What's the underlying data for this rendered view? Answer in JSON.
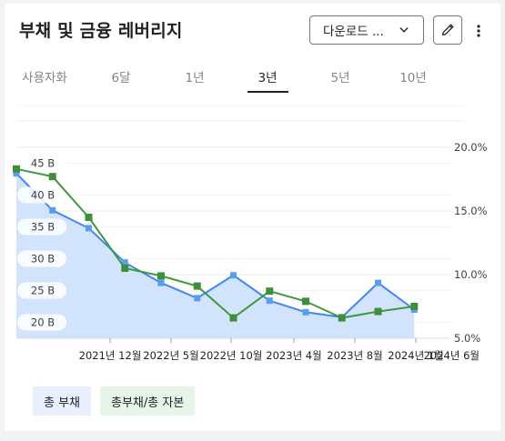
{
  "header": {
    "title": "부채 및 금융 레버리지",
    "download_label": "다운로드 ...",
    "chevron_icon": "chevron-down-icon",
    "edit_icon": "pencil-icon",
    "more_icon": "more-vert-icon"
  },
  "tabs": [
    {
      "label": "사용자화",
      "active": false
    },
    {
      "label": "6달",
      "active": false
    },
    {
      "label": "1년",
      "active": false
    },
    {
      "label": "3년",
      "active": true
    },
    {
      "label": "5년",
      "active": false
    },
    {
      "label": "10년",
      "active": false
    }
  ],
  "chart_data": {
    "type": "line",
    "x": [
      "2021-06",
      "2021-09",
      "2021-12",
      "2022-03",
      "2022-06",
      "2022-09",
      "2022-12",
      "2023-03",
      "2023-06",
      "2023-09",
      "2023-12",
      "2024-03",
      "2024-06"
    ],
    "x_tick_labels": [
      "2021년 12월",
      "2022년 5월",
      "2022년 10월",
      "2023년 4월",
      "2023년 8월",
      "2024년 1월",
      "2024년 6월"
    ],
    "left_axis": {
      "ticks": [
        "45 B",
        "40 B",
        "35 B",
        "30 B",
        "25 B",
        "20 B"
      ],
      "range": [
        17.5,
        47.5
      ]
    },
    "right_axis": {
      "ticks": [
        "20.0%",
        "15.0%",
        "10.0%",
        "5.0%"
      ],
      "range": [
        5.0,
        20.0
      ]
    },
    "series": [
      {
        "name": "총 부채",
        "axis": "left",
        "color": "#4285f4",
        "fill": "#d2e3fc",
        "values": [
          43.4,
          37.6,
          34.8,
          29.4,
          26.2,
          23.8,
          27.4,
          23.4,
          21.6,
          20.8,
          26.2,
          22.0,
          null
        ]
      },
      {
        "name": "총부채/총 자본",
        "axis": "right",
        "color": "#3c9a3c",
        "values": [
          18.3,
          17.7,
          14.5,
          10.5,
          9.9,
          9.1,
          6.6,
          8.7,
          7.9,
          6.6,
          7.1,
          7.5,
          null
        ]
      }
    ],
    "grid": true,
    "legend": "bottom-left"
  },
  "legend": [
    {
      "label": "총 부채"
    },
    {
      "label": "총부채/총 자본"
    }
  ]
}
